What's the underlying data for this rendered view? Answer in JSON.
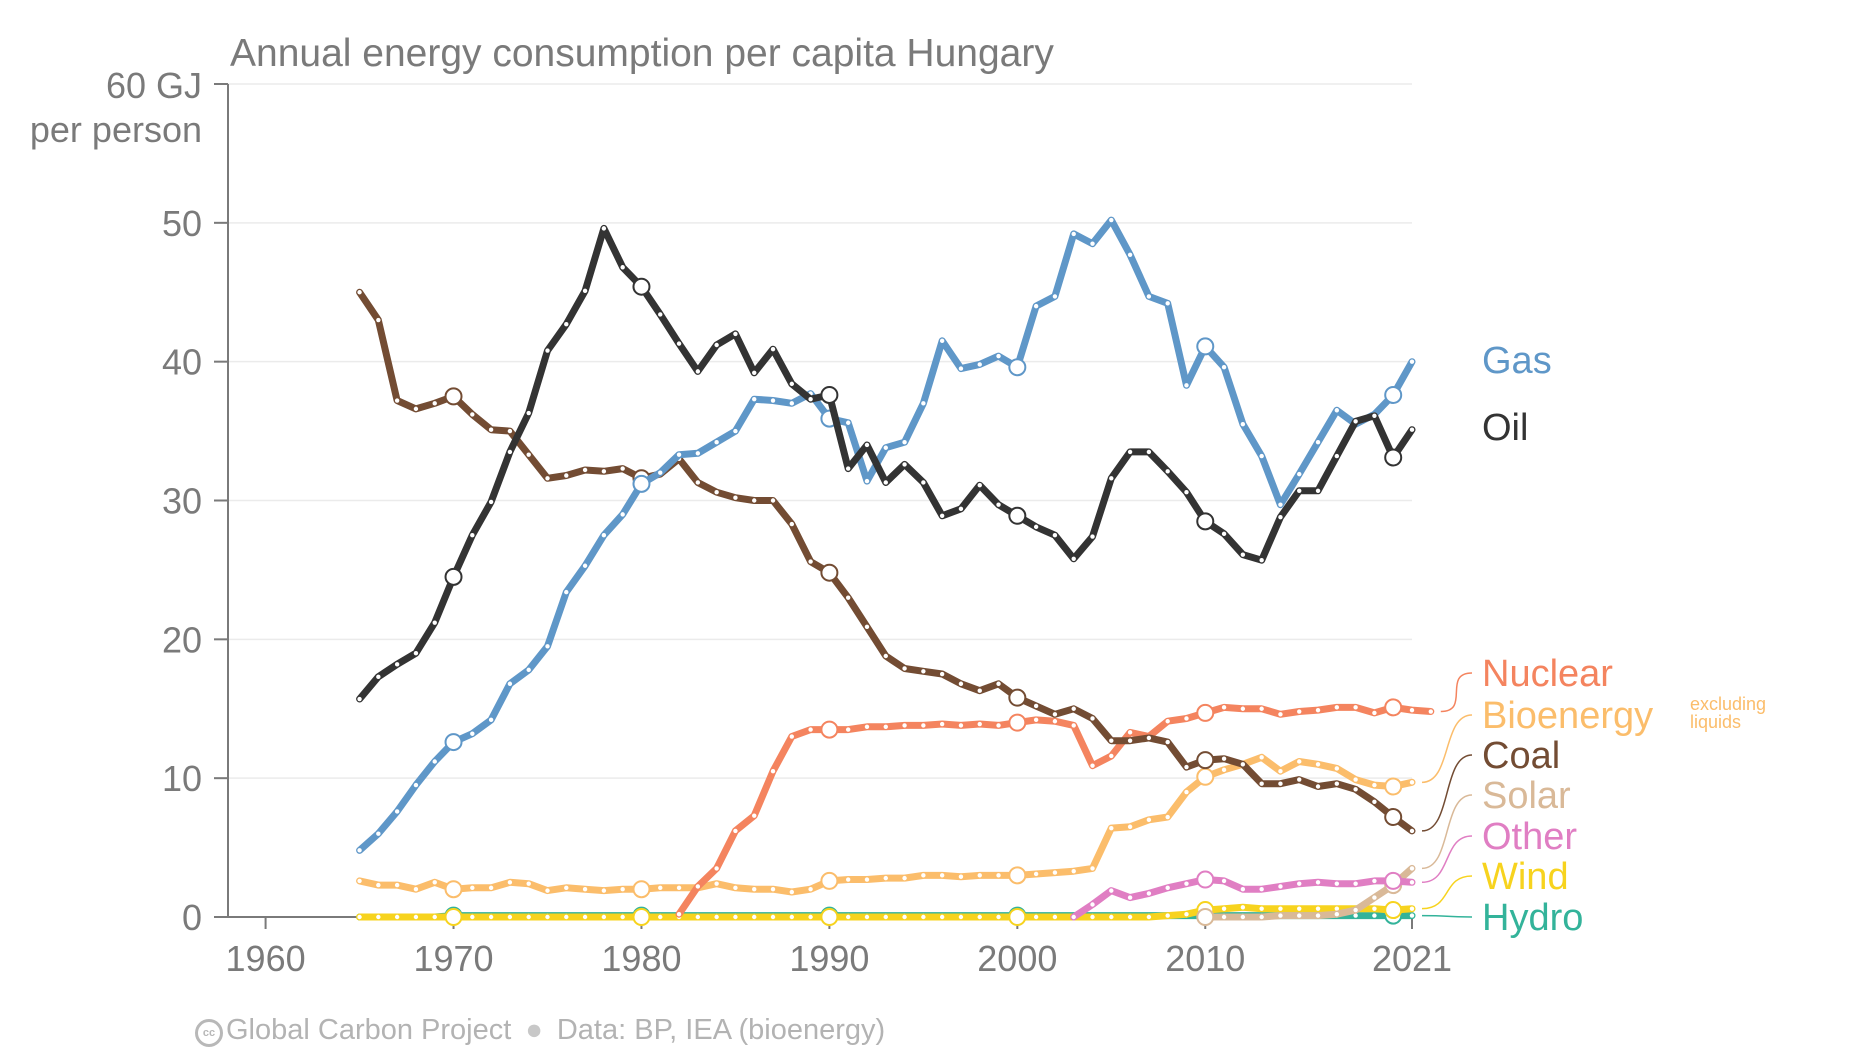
{
  "chart_data": {
    "type": "line",
    "title": "Annual energy consumption per capita Hungary",
    "ylabel": "60 GJ\nper person",
    "ylim": [
      0,
      60
    ],
    "xlim": [
      1958,
      2021
    ],
    "y_ticks": [
      0,
      10,
      20,
      30,
      40,
      50
    ],
    "x_ticks": [
      1960,
      1970,
      1980,
      1990,
      2000,
      2010,
      2021
    ],
    "grid": true,
    "legend": "right-end labels",
    "highlight_years": [
      1970,
      1980,
      1990,
      2000,
      2010,
      2020
    ],
    "series": [
      {
        "name": "Gas",
        "color": "#5f97c8",
        "start": 1965,
        "values": [
          4.8,
          6.0,
          7.6,
          9.5,
          11.2,
          12.6,
          13.2,
          14.2,
          16.8,
          17.8,
          19.5,
          23.4,
          25.3,
          27.5,
          29.0,
          31.2,
          32.0,
          33.3,
          33.4,
          34.2,
          35.0,
          37.3,
          37.2,
          37.0,
          37.7,
          35.9,
          35.6,
          31.4,
          33.8,
          34.2,
          37.0,
          41.5,
          39.5,
          39.8,
          40.4,
          39.6,
          44.0,
          44.7,
          49.2,
          48.5,
          50.2,
          47.7,
          44.7,
          44.2,
          38.3,
          41.1,
          39.6,
          35.5,
          33.2,
          29.7,
          31.9,
          34.2,
          36.5,
          35.5,
          36.2,
          37.6,
          40.0
        ]
      },
      {
        "name": "Oil",
        "color": "#333333",
        "start": 1965,
        "values": [
          15.7,
          17.3,
          18.2,
          19.0,
          21.2,
          24.5,
          27.5,
          29.9,
          33.5,
          36.3,
          40.8,
          42.7,
          45.1,
          49.6,
          46.8,
          45.4,
          43.4,
          41.3,
          39.3,
          41.2,
          42.0,
          39.2,
          40.9,
          38.4,
          37.3,
          37.6,
          32.3,
          34.0,
          31.3,
          32.6,
          31.3,
          28.9,
          29.4,
          31.1,
          29.7,
          28.9,
          28.1,
          27.5,
          25.8,
          27.4,
          31.6,
          33.5,
          33.5,
          32.1,
          30.6,
          28.5,
          27.6,
          26.1,
          25.7,
          28.8,
          30.7,
          30.7,
          33.2,
          35.7,
          36.1,
          33.1,
          35.1
        ]
      },
      {
        "name": "Nuclear",
        "color": "#f4845f",
        "start": 1982,
        "values": [
          0.2,
          2.2,
          3.5,
          6.2,
          7.3,
          10.5,
          13.0,
          13.5,
          13.5,
          13.5,
          13.7,
          13.7,
          13.8,
          13.8,
          13.9,
          13.8,
          13.9,
          13.8,
          14.0,
          14.2,
          14.1,
          13.8,
          10.9,
          11.6,
          13.3,
          13.0,
          14.1,
          14.3,
          14.7,
          15.1,
          15.0,
          15.0,
          14.6,
          14.8,
          14.9,
          15.1,
          15.1,
          14.7,
          15.1,
          14.9,
          14.8
        ]
      },
      {
        "name": "Bioenergy",
        "color": "#fbbd6b",
        "start": 1965,
        "values": [
          2.6,
          2.3,
          2.3,
          2.0,
          2.5,
          2.0,
          2.1,
          2.1,
          2.5,
          2.4,
          1.9,
          2.1,
          2.0,
          1.9,
          2.0,
          2.0,
          2.1,
          2.1,
          2.1,
          2.4,
          2.1,
          2.0,
          2.0,
          1.8,
          2.0,
          2.6,
          2.7,
          2.7,
          2.8,
          2.8,
          3.0,
          3.0,
          2.9,
          3.0,
          3.0,
          3.0,
          3.1,
          3.2,
          3.3,
          3.5,
          6.4,
          6.5,
          7.0,
          7.2,
          9.0,
          10.1,
          10.6,
          11.0,
          11.5,
          10.5,
          11.2,
          11.0,
          10.7,
          9.9,
          9.5,
          9.4,
          9.7
        ]
      },
      {
        "name": "excluding liquids",
        "color": "#fbbd6b"
      },
      {
        "name": "Coal",
        "color": "#734c33",
        "start": 1965,
        "values": [
          45.0,
          43.0,
          37.2,
          36.6,
          37.0,
          37.5,
          36.2,
          35.1,
          35.0,
          33.3,
          31.6,
          31.8,
          32.2,
          32.1,
          32.3,
          31.6,
          31.9,
          33.0,
          31.3,
          30.6,
          30.2,
          30.0,
          30.0,
          28.3,
          25.6,
          24.8,
          23.0,
          20.9,
          18.8,
          17.9,
          17.7,
          17.5,
          16.8,
          16.3,
          16.8,
          15.8,
          15.2,
          14.6,
          15.0,
          14.3,
          12.7,
          12.7,
          12.9,
          12.6,
          10.8,
          11.3,
          11.4,
          11.0,
          9.6,
          9.6,
          9.9,
          9.4,
          9.6,
          9.2,
          8.3,
          7.2,
          6.2
        ]
      },
      {
        "name": "Solar",
        "color": "#d9b998",
        "start": 2010,
        "values": [
          0.0,
          0.0,
          0.0,
          0.0,
          0.1,
          0.1,
          0.1,
          0.2,
          0.5,
          1.4,
          2.3,
          3.5
        ]
      },
      {
        "name": "Other",
        "color": "#e07ec3",
        "start": 2003,
        "values": [
          0.0,
          0.9,
          1.9,
          1.4,
          1.7,
          2.1,
          2.4,
          2.7,
          2.6,
          2.0,
          2.0,
          2.2,
          2.4,
          2.5,
          2.4,
          2.4,
          2.6,
          2.6,
          2.5
        ]
      },
      {
        "name": "Wind",
        "color": "#f7d31e",
        "start": 1965,
        "values": [
          0.0,
          0.0,
          0.0,
          0.0,
          0.0,
          0.0,
          0.0,
          0.0,
          0.0,
          0.0,
          0.0,
          0.0,
          0.0,
          0.0,
          0.0,
          0.0,
          0.0,
          0.0,
          0.0,
          0.0,
          0.0,
          0.0,
          0.0,
          0.0,
          0.0,
          0.0,
          0.0,
          0.0,
          0.0,
          0.0,
          0.0,
          0.0,
          0.0,
          0.0,
          0.0,
          0.0,
          0.0,
          0.0,
          0.0,
          0.0,
          0.0,
          0.0,
          0.0,
          0.1,
          0.2,
          0.5,
          0.6,
          0.7,
          0.6,
          0.6,
          0.6,
          0.6,
          0.6,
          0.6,
          0.6,
          0.5,
          0.6
        ]
      },
      {
        "name": "Hydro",
        "color": "#33b39a",
        "start": 1965,
        "values": [
          0.0,
          0.0,
          0.0,
          0.0,
          0.0,
          0.1,
          0.1,
          0.1,
          0.1,
          0.1,
          0.1,
          0.1,
          0.1,
          0.1,
          0.1,
          0.1,
          0.1,
          0.1,
          0.1,
          0.1,
          0.1,
          0.1,
          0.1,
          0.1,
          0.1,
          0.1,
          0.1,
          0.1,
          0.1,
          0.1,
          0.1,
          0.1,
          0.1,
          0.1,
          0.1,
          0.1,
          0.1,
          0.1,
          0.1,
          0.1,
          0.1,
          0.1,
          0.1,
          0.1,
          0.1,
          0.1,
          0.1,
          0.1,
          0.1,
          0.1,
          0.1,
          0.1,
          0.1,
          0.1,
          0.1,
          0.1,
          0.1
        ]
      }
    ]
  },
  "footer": {
    "cc_mark": "cc",
    "org": "Global Carbon Project",
    "source": "Data: BP, IEA (bioenergy)"
  }
}
